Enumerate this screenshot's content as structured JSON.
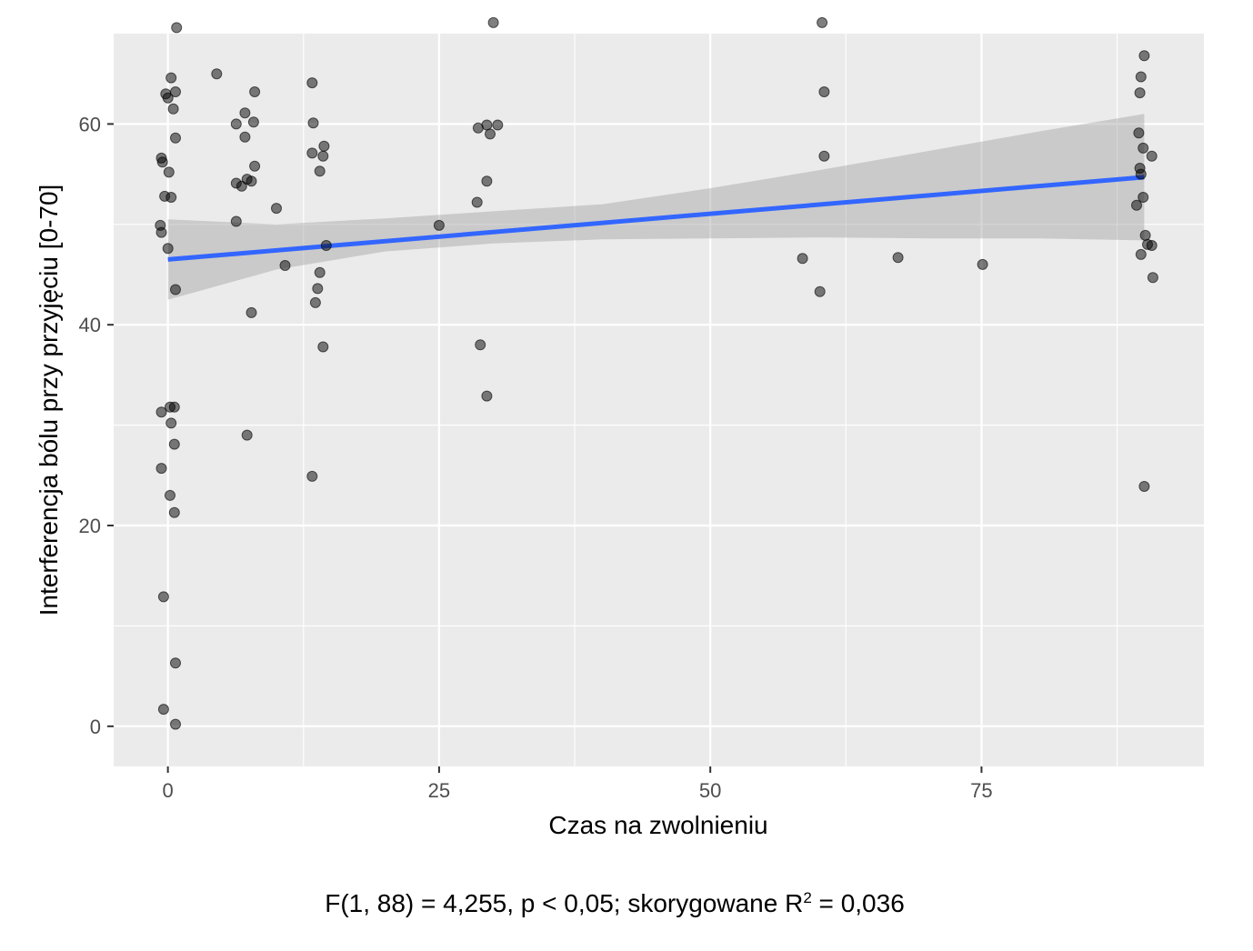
{
  "chart_data": {
    "type": "scatter",
    "xlabel": "Czas na zwolnieniu",
    "ylabel": "Interferencja bólu przy przyjęciu [0-70]",
    "xlim": [
      -5,
      95.5
    ],
    "ylim": [
      -4,
      69
    ],
    "x_ticks": [
      0,
      25,
      50,
      75
    ],
    "y_ticks": [
      0,
      20,
      40,
      60
    ],
    "grid": true,
    "background": "#ebebeb",
    "point_color": "#000000",
    "point_opacity": 0.5,
    "fit_color": "#3366ff",
    "band_color": "#999999",
    "points": [
      [
        -0.6,
        56.6
      ],
      [
        -0.5,
        56.2
      ],
      [
        -0.2,
        63.0
      ],
      [
        0.0,
        62.6
      ],
      [
        0.3,
        64.6
      ],
      [
        0.7,
        63.2
      ],
      [
        0.5,
        61.5
      ],
      [
        0.7,
        58.6
      ],
      [
        0.1,
        55.2
      ],
      [
        0.3,
        52.7
      ],
      [
        -0.3,
        52.8
      ],
      [
        -0.7,
        49.9
      ],
      [
        -0.6,
        49.2
      ],
      [
        0.0,
        47.6
      ],
      [
        0.7,
        43.5
      ],
      [
        0.8,
        69.6
      ],
      [
        -0.6,
        31.3
      ],
      [
        0.2,
        31.8
      ],
      [
        0.6,
        31.8
      ],
      [
        0.3,
        30.2
      ],
      [
        0.6,
        28.1
      ],
      [
        -0.6,
        25.7
      ],
      [
        0.2,
        23.0
      ],
      [
        0.6,
        21.3
      ],
      [
        -0.4,
        12.9
      ],
      [
        0.7,
        6.3
      ],
      [
        -0.4,
        1.7
      ],
      [
        0.7,
        0.2
      ],
      [
        4.5,
        65.0
      ],
      [
        6.3,
        60.0
      ],
      [
        7.1,
        61.1
      ],
      [
        7.9,
        60.2
      ],
      [
        8.0,
        63.2
      ],
      [
        7.1,
        58.7
      ],
      [
        8.0,
        55.8
      ],
      [
        6.3,
        54.1
      ],
      [
        6.8,
        53.8
      ],
      [
        7.3,
        54.5
      ],
      [
        7.7,
        54.3
      ],
      [
        6.3,
        50.3
      ],
      [
        7.7,
        41.2
      ],
      [
        7.3,
        29.0
      ],
      [
        10.0,
        51.6
      ],
      [
        10.8,
        45.9
      ],
      [
        13.3,
        64.1
      ],
      [
        13.4,
        60.1
      ],
      [
        13.3,
        57.1
      ],
      [
        14.4,
        57.8
      ],
      [
        14.3,
        56.8
      ],
      [
        14.0,
        55.3
      ],
      [
        14.6,
        47.9
      ],
      [
        14.0,
        45.2
      ],
      [
        13.8,
        43.6
      ],
      [
        13.6,
        42.2
      ],
      [
        14.3,
        37.8
      ],
      [
        13.3,
        24.9
      ],
      [
        25.0,
        49.9
      ],
      [
        28.6,
        59.6
      ],
      [
        29.4,
        59.9
      ],
      [
        30.4,
        59.9
      ],
      [
        29.7,
        59.0
      ],
      [
        29.4,
        54.3
      ],
      [
        28.5,
        52.2
      ],
      [
        28.8,
        38.0
      ],
      [
        29.4,
        32.9
      ],
      [
        30.0,
        70.1
      ],
      [
        60.3,
        70.1
      ],
      [
        60.5,
        63.2
      ],
      [
        60.5,
        56.8
      ],
      [
        58.5,
        46.6
      ],
      [
        60.1,
        43.3
      ],
      [
        67.3,
        46.7
      ],
      [
        75.1,
        46.0
      ],
      [
        89.5,
        59.1
      ],
      [
        89.6,
        63.1
      ],
      [
        89.7,
        64.7
      ],
      [
        90.0,
        66.8
      ],
      [
        89.9,
        57.6
      ],
      [
        90.7,
        56.8
      ],
      [
        89.6,
        55.6
      ],
      [
        89.7,
        55.0
      ],
      [
        89.9,
        52.7
      ],
      [
        89.3,
        51.9
      ],
      [
        90.1,
        48.9
      ],
      [
        90.3,
        48.0
      ],
      [
        90.7,
        47.9
      ],
      [
        89.7,
        47.0
      ],
      [
        90.8,
        44.7
      ],
      [
        90.0,
        23.9
      ]
    ],
    "fit": {
      "x": [
        0,
        90
      ],
      "y": [
        46.5,
        54.7
      ]
    },
    "band": {
      "x": [
        0,
        10,
        20,
        30,
        40,
        50,
        60,
        70,
        80,
        90
      ],
      "lower": [
        42.5,
        45.5,
        47.3,
        48.1,
        48.5,
        48.6,
        48.7,
        48.6,
        48.6,
        48.4
      ],
      "upper": [
        50.5,
        50.0,
        50.6,
        51.3,
        52.0,
        53.6,
        55.4,
        57.3,
        59.2,
        61.0
      ]
    }
  },
  "caption": {
    "main": "F(1, 88) = 4,255, p < 0,05; skorygowane R",
    "sup": "2",
    "tail": " = 0,036"
  }
}
